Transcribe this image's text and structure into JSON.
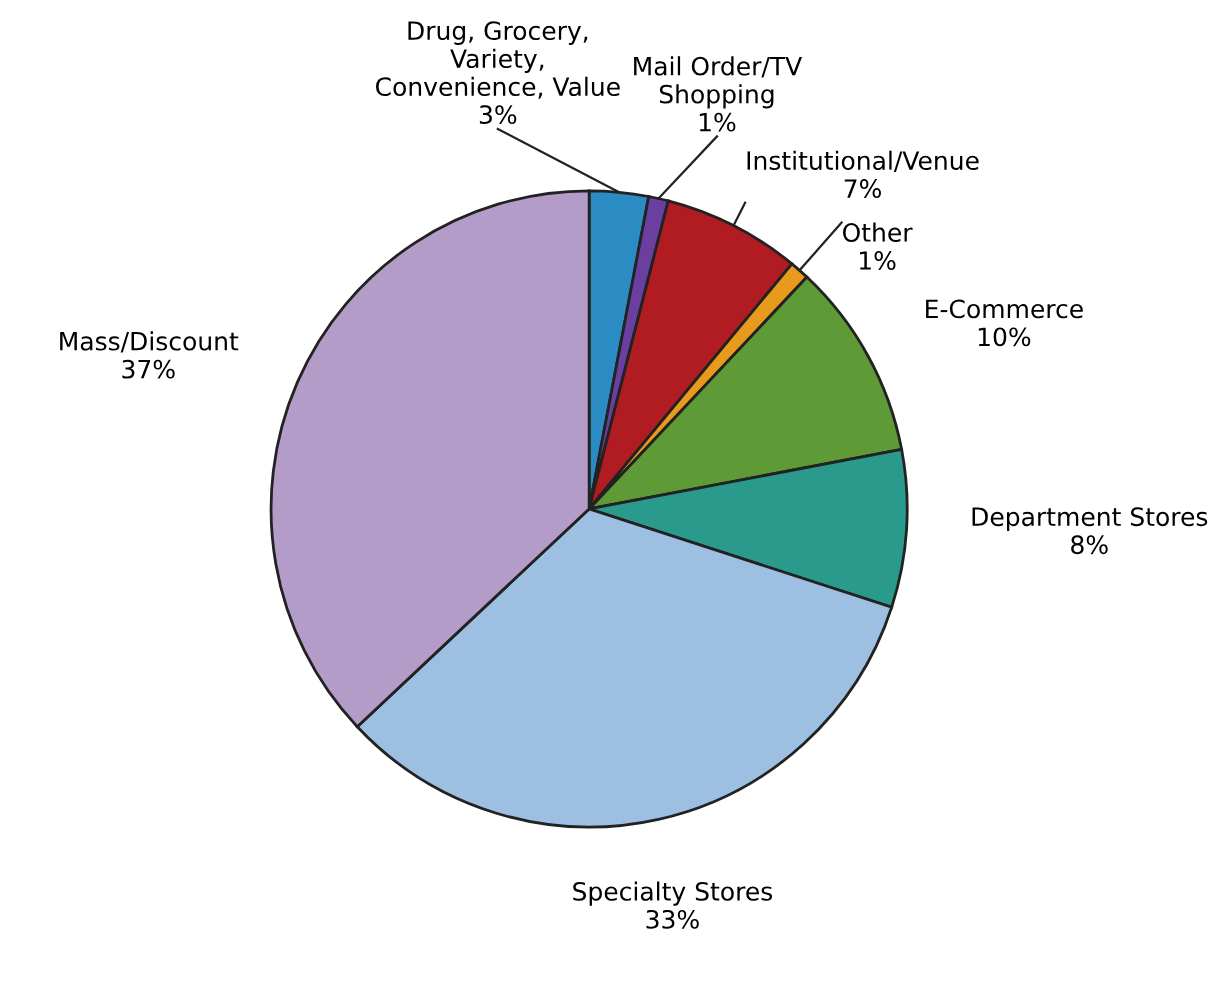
{
  "chart_data": {
    "type": "pie",
    "categories": [
      "Drug, Grocery,\nVariety,\nConvenience, Value",
      "Mail Order/TV\nShopping",
      "Institutional/Venue",
      "Other",
      "E-Commerce",
      "Department Stores",
      "Specialty Stores",
      "Mass/Discount"
    ],
    "values": [
      3,
      1,
      7,
      1,
      10,
      8,
      33,
      37
    ],
    "value_labels": [
      "3%",
      "1%",
      "7%",
      "1%",
      "10%",
      "8%",
      "33%",
      "37%"
    ],
    "colors": [
      "#2b8cc4",
      "#6b3fa0",
      "#b01c22",
      "#e89a1c",
      "#5e9a35",
      "#2a9a8c",
      "#9dc0e2",
      "#b39dc8"
    ],
    "legend": false
  }
}
